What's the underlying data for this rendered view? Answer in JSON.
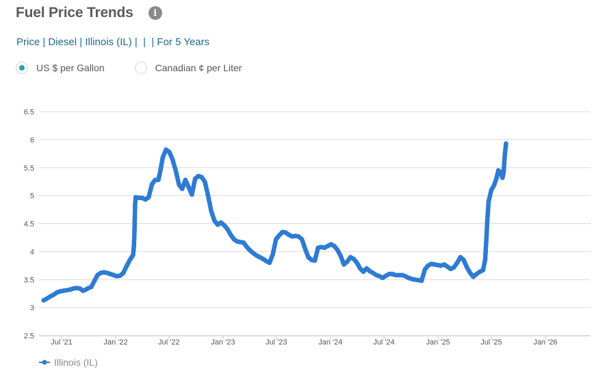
{
  "header": {
    "title": "Fuel Price Trends",
    "info_icon": "info-icon"
  },
  "breadcrumb": {
    "items": [
      "Price",
      "Diesel",
      "Illinois (IL)",
      "",
      "",
      "For 5 Years"
    ],
    "separator": " | "
  },
  "units": {
    "options": [
      {
        "label": "US $ per Gallon",
        "selected": true
      },
      {
        "label": "Canadian ¢ per Liter",
        "selected": false
      }
    ]
  },
  "legend": {
    "label": "Illinois (IL)"
  },
  "colors": {
    "series": "#2e7bd4",
    "grid": "#d9d9d9",
    "selected_radio": "#2a9fa8"
  },
  "chart_data": {
    "type": "line",
    "title": "",
    "xlabel": "",
    "ylabel": "",
    "ylim": [
      2.5,
      6.5
    ],
    "yticks": [
      "2.5",
      "3",
      "3.5",
      "4",
      "4.5",
      "5",
      "5.5",
      "6",
      "6.5"
    ],
    "xticks": [
      {
        "label": "Jul '21",
        "x": "2021-07-01"
      },
      {
        "label": "Jan '22",
        "x": "2022-01-01"
      },
      {
        "label": "Jul '22",
        "x": "2022-07-01"
      },
      {
        "label": "Jan '23",
        "x": "2023-01-01"
      },
      {
        "label": "Jul '23",
        "x": "2023-07-01"
      },
      {
        "label": "Jan '24",
        "x": "2024-01-01"
      },
      {
        "label": "Jul '24",
        "x": "2024-07-01"
      },
      {
        "label": "Jan '25",
        "x": "2025-01-01"
      },
      {
        "label": "Jul '25",
        "x": "2025-07-01"
      },
      {
        "label": "Jan '26",
        "x": "2026-01-01"
      }
    ],
    "grid": true,
    "legend_position": "bottom-left",
    "series": [
      {
        "name": "Illinois (IL)",
        "points": [
          [
            "2021-05-01",
            3.13
          ],
          [
            "2021-05-12",
            3.16
          ],
          [
            "2021-05-24",
            3.2
          ],
          [
            "2021-06-04",
            3.23
          ],
          [
            "2021-06-15",
            3.27
          ],
          [
            "2021-06-26",
            3.29
          ],
          [
            "2021-07-07",
            3.3
          ],
          [
            "2021-07-18",
            3.31
          ],
          [
            "2021-07-29",
            3.32
          ],
          [
            "2021-08-10",
            3.34
          ],
          [
            "2021-08-21",
            3.35
          ],
          [
            "2021-09-01",
            3.34
          ],
          [
            "2021-09-12",
            3.3
          ],
          [
            "2021-09-20",
            3.32
          ],
          [
            "2021-10-01",
            3.35
          ],
          [
            "2021-10-10",
            3.37
          ],
          [
            "2021-10-20",
            3.47
          ],
          [
            "2021-10-31",
            3.58
          ],
          [
            "2021-11-11",
            3.62
          ],
          [
            "2021-11-22",
            3.63
          ],
          [
            "2021-12-03",
            3.62
          ],
          [
            "2021-12-14",
            3.6
          ],
          [
            "2021-12-25",
            3.58
          ],
          [
            "2022-01-05",
            3.56
          ],
          [
            "2022-01-16",
            3.57
          ],
          [
            "2022-01-27",
            3.62
          ],
          [
            "2022-02-07",
            3.74
          ],
          [
            "2022-02-18",
            3.85
          ],
          [
            "2022-03-01",
            3.94
          ],
          [
            "2022-03-04",
            4.1
          ],
          [
            "2022-03-06",
            4.4
          ],
          [
            "2022-03-08",
            4.85
          ],
          [
            "2022-03-10",
            4.97
          ],
          [
            "2022-03-20",
            4.96
          ],
          [
            "2022-04-01",
            4.96
          ],
          [
            "2022-04-12",
            4.93
          ],
          [
            "2022-04-23",
            4.97
          ],
          [
            "2022-05-04",
            5.2
          ],
          [
            "2022-05-15",
            5.28
          ],
          [
            "2022-05-26",
            5.28
          ],
          [
            "2022-06-02",
            5.45
          ],
          [
            "2022-06-10",
            5.68
          ],
          [
            "2022-06-21",
            5.82
          ],
          [
            "2022-07-02",
            5.78
          ],
          [
            "2022-07-13",
            5.65
          ],
          [
            "2022-07-24",
            5.45
          ],
          [
            "2022-08-04",
            5.2
          ],
          [
            "2022-08-15",
            5.12
          ],
          [
            "2022-08-26",
            5.28
          ],
          [
            "2022-09-06",
            5.15
          ],
          [
            "2022-09-17",
            5.02
          ],
          [
            "2022-09-28",
            5.3
          ],
          [
            "2022-10-09",
            5.35
          ],
          [
            "2022-10-20",
            5.33
          ],
          [
            "2022-10-31",
            5.25
          ],
          [
            "2022-11-11",
            5.0
          ],
          [
            "2022-11-22",
            4.72
          ],
          [
            "2022-12-03",
            4.55
          ],
          [
            "2022-12-14",
            4.48
          ],
          [
            "2022-12-25",
            4.52
          ],
          [
            "2023-01-05",
            4.47
          ],
          [
            "2023-01-16",
            4.4
          ],
          [
            "2023-01-27",
            4.3
          ],
          [
            "2023-02-07",
            4.22
          ],
          [
            "2023-02-18",
            4.18
          ],
          [
            "2023-03-01",
            4.17
          ],
          [
            "2023-03-12",
            4.16
          ],
          [
            "2023-03-23",
            4.08
          ],
          [
            "2023-04-03",
            4.02
          ],
          [
            "2023-04-14",
            3.97
          ],
          [
            "2023-04-25",
            3.93
          ],
          [
            "2023-05-06",
            3.9
          ],
          [
            "2023-05-17",
            3.87
          ],
          [
            "2023-05-28",
            3.83
          ],
          [
            "2023-06-08",
            3.8
          ],
          [
            "2023-06-19",
            3.95
          ],
          [
            "2023-06-30",
            4.22
          ],
          [
            "2023-07-11",
            4.29
          ],
          [
            "2023-07-22",
            4.35
          ],
          [
            "2023-08-02",
            4.34
          ],
          [
            "2023-08-13",
            4.3
          ],
          [
            "2023-08-24",
            4.27
          ],
          [
            "2023-09-04",
            4.28
          ],
          [
            "2023-09-15",
            4.27
          ],
          [
            "2023-09-26",
            4.22
          ],
          [
            "2023-10-07",
            4.05
          ],
          [
            "2023-10-18",
            3.9
          ],
          [
            "2023-10-29",
            3.85
          ],
          [
            "2023-11-09",
            3.84
          ],
          [
            "2023-11-20",
            4.07
          ],
          [
            "2023-12-01",
            4.08
          ],
          [
            "2023-12-12",
            4.07
          ],
          [
            "2023-12-23",
            4.1
          ],
          [
            "2024-01-03",
            4.13
          ],
          [
            "2024-01-14",
            4.1
          ],
          [
            "2024-01-25",
            4.03
          ],
          [
            "2024-02-05",
            3.92
          ],
          [
            "2024-02-16",
            3.77
          ],
          [
            "2024-02-27",
            3.82
          ],
          [
            "2024-03-09",
            3.9
          ],
          [
            "2024-03-20",
            3.87
          ],
          [
            "2024-03-31",
            3.8
          ],
          [
            "2024-04-11",
            3.7
          ],
          [
            "2024-04-22",
            3.64
          ],
          [
            "2024-05-03",
            3.7
          ],
          [
            "2024-05-14",
            3.65
          ],
          [
            "2024-05-25",
            3.62
          ],
          [
            "2024-06-05",
            3.58
          ],
          [
            "2024-06-16",
            3.56
          ],
          [
            "2024-06-27",
            3.53
          ],
          [
            "2024-07-08",
            3.57
          ],
          [
            "2024-07-19",
            3.6
          ],
          [
            "2024-07-30",
            3.6
          ],
          [
            "2024-08-10",
            3.58
          ],
          [
            "2024-08-21",
            3.58
          ],
          [
            "2024-09-01",
            3.58
          ],
          [
            "2024-09-12",
            3.56
          ],
          [
            "2024-09-23",
            3.53
          ],
          [
            "2024-10-04",
            3.51
          ],
          [
            "2024-10-15",
            3.5
          ],
          [
            "2024-10-26",
            3.49
          ],
          [
            "2024-11-06",
            3.48
          ],
          [
            "2024-11-17",
            3.68
          ],
          [
            "2024-11-28",
            3.75
          ],
          [
            "2024-12-09",
            3.78
          ],
          [
            "2024-12-20",
            3.77
          ],
          [
            "2024-12-31",
            3.76
          ],
          [
            "2025-01-11",
            3.75
          ],
          [
            "2025-01-22",
            3.77
          ],
          [
            "2025-02-02",
            3.73
          ],
          [
            "2025-02-13",
            3.69
          ],
          [
            "2025-02-24",
            3.72
          ],
          [
            "2025-03-07",
            3.8
          ],
          [
            "2025-03-18",
            3.9
          ],
          [
            "2025-03-29",
            3.85
          ],
          [
            "2025-04-09",
            3.72
          ],
          [
            "2025-04-20",
            3.62
          ],
          [
            "2025-05-01",
            3.55
          ],
          [
            "2025-05-12",
            3.6
          ],
          [
            "2025-05-23",
            3.64
          ],
          [
            "2025-06-03",
            3.67
          ],
          [
            "2025-06-10",
            3.85
          ],
          [
            "2025-06-14",
            4.2
          ],
          [
            "2025-06-18",
            4.6
          ],
          [
            "2025-06-22",
            4.9
          ],
          [
            "2025-07-01",
            5.1
          ],
          [
            "2025-07-10",
            5.18
          ],
          [
            "2025-07-18",
            5.3
          ],
          [
            "2025-07-25",
            5.45
          ],
          [
            "2025-08-01",
            5.42
          ],
          [
            "2025-08-08",
            5.32
          ],
          [
            "2025-08-12",
            5.42
          ],
          [
            "2025-08-16",
            5.73
          ],
          [
            "2025-08-20",
            5.93
          ]
        ]
      }
    ]
  }
}
